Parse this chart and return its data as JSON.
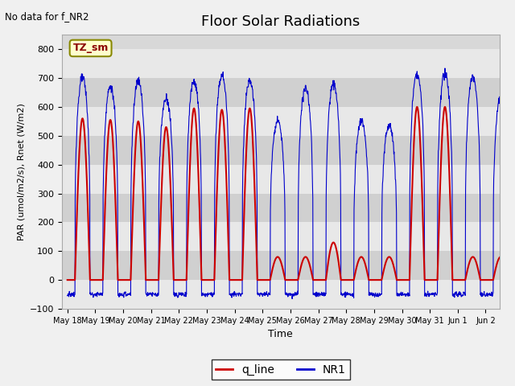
{
  "title": "Floor Solar Radiations",
  "xlabel": "Time",
  "ylabel": "PAR (umol/m2/s), Rnet (W/m2)",
  "ylim": [
    -100,
    850
  ],
  "yticks": [
    -100,
    0,
    100,
    200,
    300,
    400,
    500,
    600,
    700,
    800
  ],
  "annotation_text": "No data for f_NR2",
  "legend_label_box": "TZ_sm",
  "legend_q_line": "q_line",
  "legend_NR1": "NR1",
  "q_line_color": "#cc0000",
  "NR1_color": "#0000cc",
  "bg_color": "#d8d8d8",
  "band_light": "#e8e8e8",
  "band_dark": "#d0d0d0",
  "num_days": 16,
  "day_labels": [
    "May 18",
    "May 19",
    "May 20",
    "May 21",
    "May 22",
    "May 23",
    "May 24",
    "May 25",
    "May 26",
    "May 27",
    "May 28",
    "May 29",
    "May 30",
    "May 31",
    "Jun 1",
    "Jun 2"
  ]
}
